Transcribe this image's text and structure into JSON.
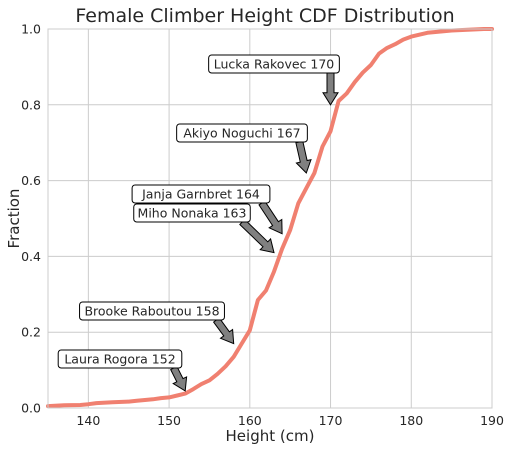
{
  "chart_data": {
    "type": "line",
    "title": "Female Climber Height CDF Distribution",
    "xlabel": "Height (cm)",
    "ylabel": "Fraction",
    "xlim": [
      135,
      190
    ],
    "ylim": [
      0,
      1
    ],
    "xticks": [
      140,
      150,
      160,
      170,
      180,
      190
    ],
    "yticks": [
      0.0,
      0.2,
      0.4,
      0.6,
      0.8,
      1.0
    ],
    "ytick_labels": [
      "0.0",
      "0.2",
      "0.4",
      "0.6",
      "0.8",
      "1.0"
    ],
    "grid": true,
    "line_color": "#f08070",
    "series": [
      {
        "x": [
          135,
          137,
          139,
          140,
          141,
          143,
          145,
          146,
          147,
          148,
          149,
          150,
          151,
          152,
          153,
          154,
          155,
          156,
          157,
          158,
          159,
          160,
          161,
          162,
          163,
          164,
          165,
          166,
          167,
          168,
          169,
          170,
          171,
          172,
          173,
          174,
          175,
          176,
          177,
          178,
          179,
          180,
          181,
          182,
          183,
          184,
          185,
          186,
          187,
          188,
          189,
          190
        ],
        "y": [
          0.005,
          0.007,
          0.008,
          0.01,
          0.013,
          0.015,
          0.017,
          0.019,
          0.021,
          0.023,
          0.026,
          0.028,
          0.033,
          0.038,
          0.05,
          0.063,
          0.073,
          0.09,
          0.11,
          0.135,
          0.17,
          0.205,
          0.285,
          0.31,
          0.36,
          0.42,
          0.47,
          0.54,
          0.58,
          0.62,
          0.69,
          0.73,
          0.81,
          0.83,
          0.86,
          0.885,
          0.905,
          0.935,
          0.95,
          0.96,
          0.972,
          0.98,
          0.985,
          0.99,
          0.992,
          0.994,
          0.996,
          0.997,
          0.998,
          0.999,
          1.0,
          1.0
        ]
      }
    ],
    "annotations": [
      {
        "text": "Lucka Rakovec 170",
        "x": 170,
        "y": 0.8
      },
      {
        "text": "Akiyo Noguchi 167",
        "x": 167,
        "y": 0.62
      },
      {
        "text": "Janja Garnbret 164",
        "x": 164,
        "y": 0.46
      },
      {
        "text": "Miho Nonaka 163",
        "x": 163,
        "y": 0.41
      },
      {
        "text": "Brooke Raboutou 158",
        "x": 158,
        "y": 0.17
      },
      {
        "text": "Laura Rogora 152",
        "x": 152,
        "y": 0.045
      }
    ]
  }
}
